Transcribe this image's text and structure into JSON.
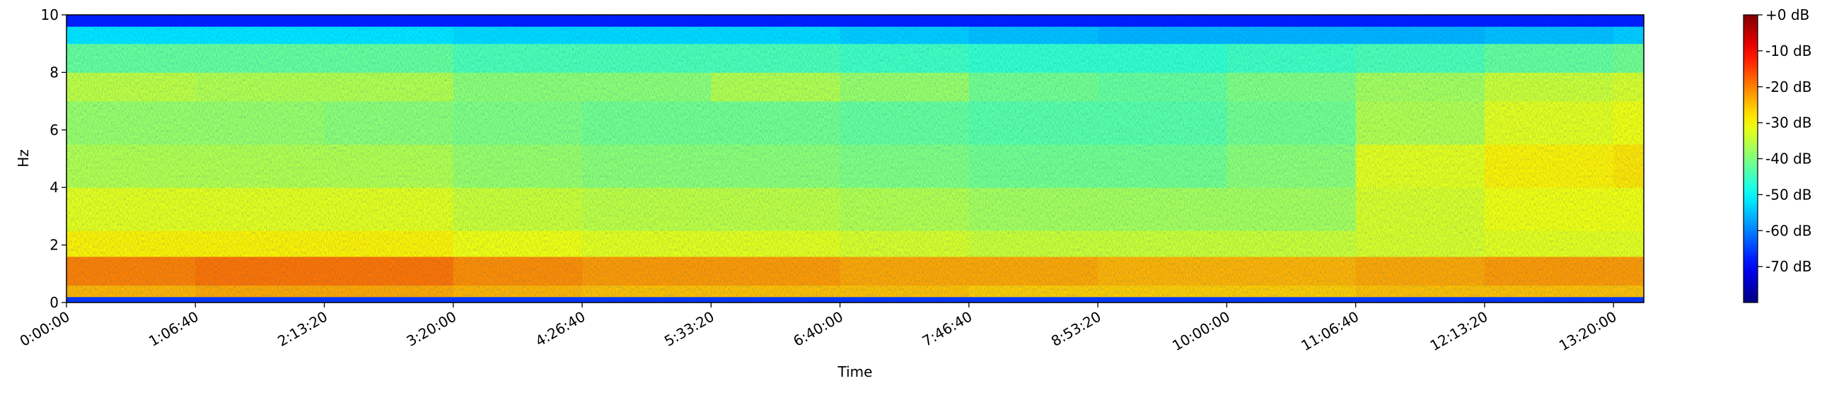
{
  "chart_data": {
    "type": "heatmap",
    "xlabel": "Time",
    "ylabel": "Hz",
    "xlim": [
      0,
      48940
    ],
    "ylim": [
      0,
      10
    ],
    "clim": [
      -80,
      0
    ],
    "colormap": "jet",
    "x_bins": [
      0,
      4000,
      8000,
      12000,
      16000,
      20000,
      24000,
      28000,
      32000,
      36000,
      40000,
      44000,
      48000,
      48940
    ],
    "y_bins": [
      0,
      0.2,
      0.6,
      1.6,
      2.5,
      4,
      5.5,
      7,
      8,
      9,
      9.6,
      10
    ],
    "values": [
      [
        -66,
        -66,
        -66,
        -66,
        -66,
        -66,
        -66,
        -66,
        -66,
        -66,
        -66,
        -66,
        -66
      ],
      [
        -24,
        -23,
        -23,
        -24,
        -25,
        -25,
        -25,
        -26,
        -26,
        -26,
        -25,
        -25,
        -25
      ],
      [
        -20,
        -19,
        -19,
        -21,
        -22,
        -22,
        -23,
        -23,
        -24,
        -24,
        -23,
        -22,
        -22
      ],
      [
        -29,
        -29,
        -29,
        -31,
        -32,
        -32,
        -33,
        -34,
        -34,
        -34,
        -33,
        -32,
        -32
      ],
      [
        -32,
        -32,
        -32,
        -34,
        -35,
        -35,
        -36,
        -37,
        -37,
        -37,
        -33,
        -31,
        -31
      ],
      [
        -36,
        -36,
        -36,
        -38,
        -39,
        -39,
        -40,
        -41,
        -41,
        -39,
        -32,
        -29,
        -28
      ],
      [
        -38,
        -38,
        -39,
        -40,
        -41,
        -41,
        -42,
        -43,
        -43,
        -41,
        -36,
        -32,
        -31
      ],
      [
        -35,
        -36,
        -36,
        -39,
        -39,
        -36,
        -38,
        -41,
        -42,
        -40,
        -37,
        -34,
        -33
      ],
      [
        -42,
        -42,
        -42,
        -44,
        -44,
        -44,
        -45,
        -46,
        -46,
        -45,
        -44,
        -42,
        -41
      ],
      [
        -52,
        -52,
        -52,
        -53,
        -53,
        -53,
        -54,
        -55,
        -56,
        -56,
        -56,
        -55,
        -54
      ],
      [
        -68,
        -68,
        -68,
        -68,
        -68,
        -68,
        -68,
        -68,
        -68,
        -68,
        -68,
        -68,
        -68
      ]
    ],
    "xticks": [
      {
        "value": 0,
        "label": "0:00:00"
      },
      {
        "value": 4000,
        "label": "1:06:40"
      },
      {
        "value": 8000,
        "label": "2:13:20"
      },
      {
        "value": 12000,
        "label": "3:20:00"
      },
      {
        "value": 16000,
        "label": "4:26:40"
      },
      {
        "value": 20000,
        "label": "5:33:20"
      },
      {
        "value": 24000,
        "label": "6:40:00"
      },
      {
        "value": 28000,
        "label": "7:46:40"
      },
      {
        "value": 32000,
        "label": "8:53:20"
      },
      {
        "value": 36000,
        "label": "10:00:00"
      },
      {
        "value": 40000,
        "label": "11:06:40"
      },
      {
        "value": 44000,
        "label": "12:13:20"
      },
      {
        "value": 48000,
        "label": "13:20:00"
      }
    ],
    "yticks": [
      0,
      2,
      4,
      6,
      8,
      10
    ],
    "cticks": [
      {
        "value": 0,
        "label": "+0 dB"
      },
      {
        "value": -10,
        "label": "-10 dB"
      },
      {
        "value": -20,
        "label": "-20 dB"
      },
      {
        "value": -30,
        "label": "-30 dB"
      },
      {
        "value": -40,
        "label": "-40 dB"
      },
      {
        "value": -50,
        "label": "-50 dB"
      },
      {
        "value": -60,
        "label": "-60 dB"
      },
      {
        "value": -70,
        "label": "-70 dB"
      }
    ]
  }
}
